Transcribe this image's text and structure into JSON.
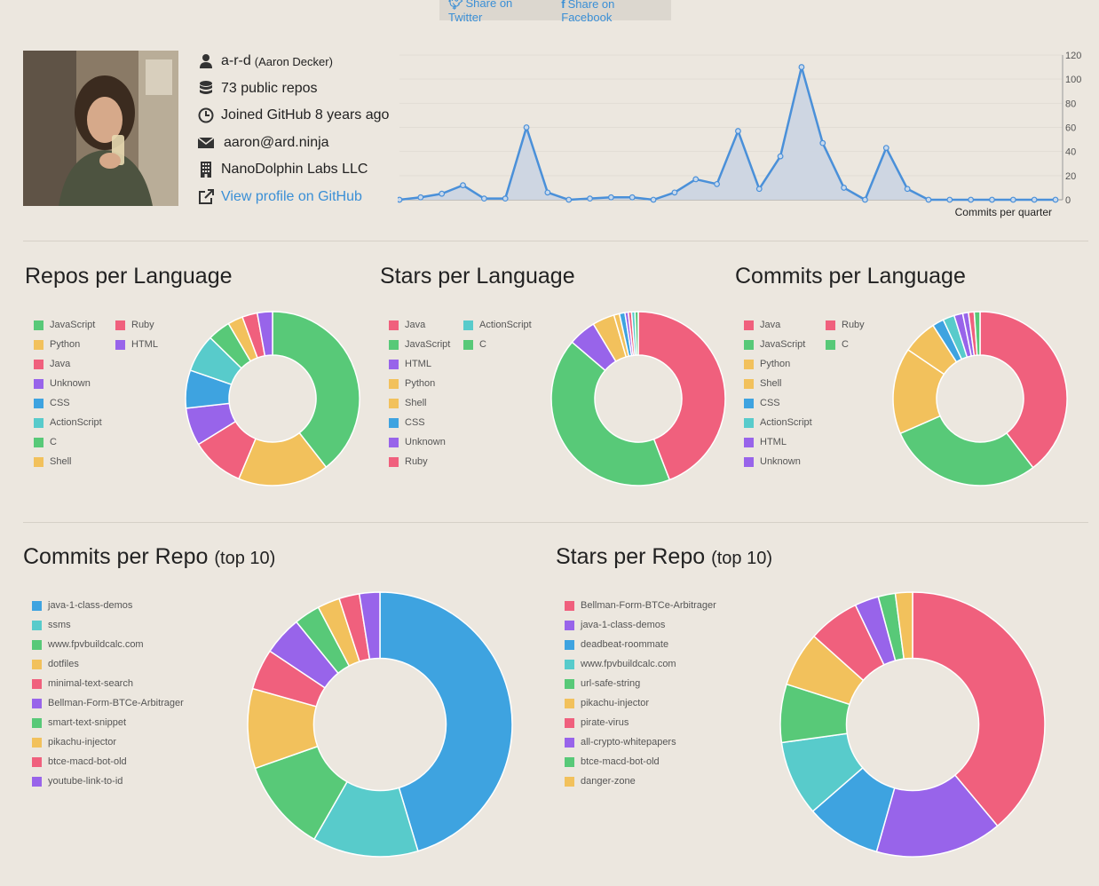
{
  "share": {
    "twitter_label": "Share on Twitter",
    "facebook_label": "Share on Facebook"
  },
  "profile": {
    "username": "a-r-d",
    "full_name": "(Aaron Decker)",
    "repos": "73 public repos",
    "joined": "Joined GitHub 8 years ago",
    "email": "aaron@ard.ninja",
    "company": "NanoDolphin Labs LLC",
    "profile_link": "View profile on GitHub"
  },
  "colors": {
    "red": "#f0607d",
    "green": "#58c978",
    "yellow": "#f2c15c",
    "blue": "#3ea3e0",
    "purple": "#9864ea",
    "teal": "#58cbcb",
    "line": "#4a90d9",
    "area": "#ccd5e1"
  },
  "quarter_chart": {
    "label": "Commits per quarter",
    "ticks": [
      0,
      20,
      40,
      60,
      80,
      100,
      120
    ],
    "ymax": 120,
    "values": [
      0,
      2,
      5,
      12,
      1,
      1,
      60,
      6,
      0,
      1,
      2,
      2,
      0,
      6,
      17,
      13,
      57,
      9,
      36,
      110,
      47,
      10,
      0,
      43,
      9,
      0,
      0,
      0,
      0,
      0,
      0,
      0
    ]
  },
  "sections": {
    "repos_per_language": "Repos per Language",
    "stars_per_language": "Stars per Language",
    "commits_per_language": "Commits per Language",
    "commits_per_repo": "Commits per Repo",
    "stars_per_repo": "Stars per Repo",
    "top10": "(top 10)"
  },
  "chart_data": [
    {
      "type": "pie",
      "name": "repos-per-language",
      "categories": [
        "JavaScript",
        "Python",
        "Java",
        "Unknown",
        "CSS",
        "ActionScript",
        "C",
        "Shell",
        "Ruby",
        "HTML"
      ],
      "colors": [
        "green",
        "yellow",
        "red",
        "purple",
        "blue",
        "teal",
        "green",
        "yellow",
        "red",
        "purple"
      ],
      "values": [
        28,
        12,
        7,
        5,
        5,
        5,
        3,
        2,
        2,
        2
      ]
    },
    {
      "type": "pie",
      "name": "stars-per-language",
      "categories": [
        "Java",
        "JavaScript",
        "HTML",
        "Python",
        "Shell",
        "CSS",
        "Unknown",
        "Ruby",
        "ActionScript",
        "C"
      ],
      "colors": [
        "red",
        "green",
        "purple",
        "yellow",
        "yellow",
        "blue",
        "purple",
        "red",
        "teal",
        "green"
      ],
      "values": [
        43,
        41,
        5,
        4,
        1,
        1,
        0.6,
        0.6,
        0.6,
        0.6
      ]
    },
    {
      "type": "pie",
      "name": "commits-per-language",
      "categories": [
        "Java",
        "JavaScript",
        "Python",
        "Shell",
        "CSS",
        "ActionScript",
        "HTML",
        "Unknown",
        "Ruby",
        "C"
      ],
      "colors": [
        "red",
        "green",
        "yellow",
        "yellow",
        "blue",
        "teal",
        "purple",
        "purple",
        "red",
        "green"
      ],
      "values": [
        37,
        27,
        15,
        6,
        2,
        2,
        1.5,
        1,
        1,
        1
      ]
    },
    {
      "type": "pie",
      "name": "commits-per-repo",
      "categories": [
        "java-1-class-demos",
        "ssms",
        "www.fpvbuildcalc.com",
        "dotfiles",
        "minimal-text-search",
        "Bellman-Form-BTCe-Arbitrager",
        "smart-text-snippet",
        "pikachu-injector",
        "btce-macd-bot-old",
        "youtube-link-to-id"
      ],
      "colors": [
        "blue",
        "teal",
        "green",
        "yellow",
        "red",
        "purple",
        "green",
        "yellow",
        "red",
        "purple"
      ],
      "values": [
        200,
        57,
        50,
        43,
        22,
        21,
        14,
        12,
        11,
        11
      ]
    },
    {
      "type": "pie",
      "name": "stars-per-repo",
      "categories": [
        "Bellman-Form-BTCe-Arbitrager",
        "java-1-class-demos",
        "deadbeat-roommate",
        "www.fpvbuildcalc.com",
        "url-safe-string",
        "pikachu-injector",
        "pirate-virus",
        "all-crypto-whitepapers",
        "btce-macd-bot-old",
        "danger-zone"
      ],
      "colors": [
        "red",
        "purple",
        "blue",
        "teal",
        "green",
        "yellow",
        "red",
        "purple",
        "green",
        "yellow"
      ],
      "values": [
        93,
        37,
        22,
        22,
        17,
        16,
        15,
        7,
        5,
        5
      ]
    }
  ]
}
